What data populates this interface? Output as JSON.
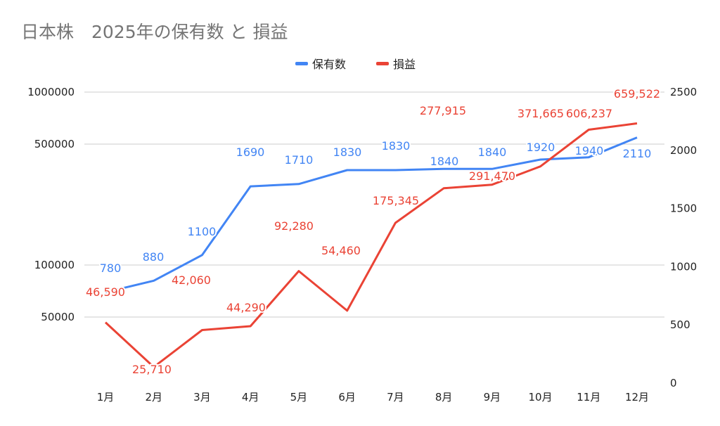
{
  "chart_data": {
    "type": "line",
    "title": "日本株　2025年の保有数 と 損益",
    "categories": [
      "1月",
      "2月",
      "3月",
      "4月",
      "5月",
      "6月",
      "7月",
      "8月",
      "9月",
      "10月",
      "11月",
      "12月"
    ],
    "series": [
      {
        "name": "保有数",
        "axis": "right",
        "color": "#4285f4",
        "values": [
          780,
          880,
          1100,
          1690,
          1710,
          1830,
          1830,
          1840,
          1840,
          1920,
          1940,
          2110
        ],
        "labels": [
          "780",
          "880",
          "1100",
          "1690",
          "1710",
          "1830",
          "1830",
          "1840",
          "1840",
          "1920",
          "1940",
          "2110"
        ]
      },
      {
        "name": "損益",
        "axis": "left",
        "color": "#ea4335",
        "values": [
          46590,
          25710,
          42060,
          44290,
          92280,
          54460,
          175345,
          277915,
          291470,
          371665,
          606237,
          659522
        ],
        "labels": [
          "46,590",
          "25,710",
          "42,060",
          "44,290",
          "92,280",
          "54,460",
          "175,345",
          "277,915",
          "291,470",
          "371,665",
          "606,237",
          "659,522"
        ]
      }
    ],
    "left_axis": {
      "scale": "log",
      "ticks": [
        50000,
        100000,
        500000,
        1000000
      ],
      "tick_labels": [
        "50000",
        "100000",
        "500000",
        "1000000"
      ]
    },
    "right_axis": {
      "scale": "linear",
      "range": [
        0,
        2500
      ],
      "ticks": [
        0,
        500,
        1000,
        1500,
        2000,
        2500
      ],
      "tick_labels": [
        "0",
        "500",
        "1000",
        "1500",
        "2000",
        "2500"
      ]
    },
    "legend": "top",
    "grid": true
  }
}
